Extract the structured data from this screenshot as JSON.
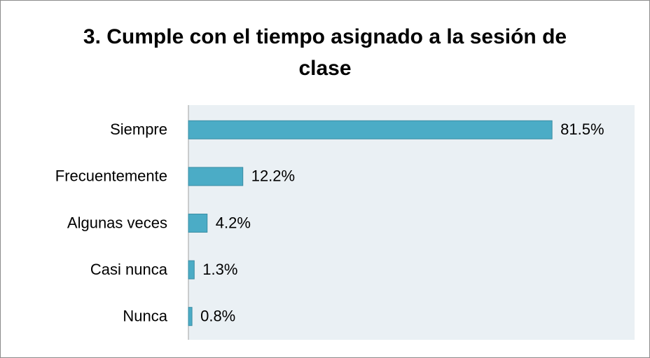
{
  "chart_data": {
    "type": "bar",
    "orientation": "horizontal",
    "title": "3. Cumple con el tiempo asignado a la sesión de clase",
    "categories": [
      "Siempre",
      "Frecuentemente",
      "Algunas veces",
      "Casi nunca",
      "Nunca"
    ],
    "values": [
      81.5,
      12.2,
      4.2,
      1.3,
      0.8
    ],
    "value_labels": [
      "81.5%",
      "12.2%",
      "4.2%",
      "1.3%",
      "0.8%"
    ],
    "color": "#4bacc6",
    "xlim": [
      0,
      100
    ]
  }
}
